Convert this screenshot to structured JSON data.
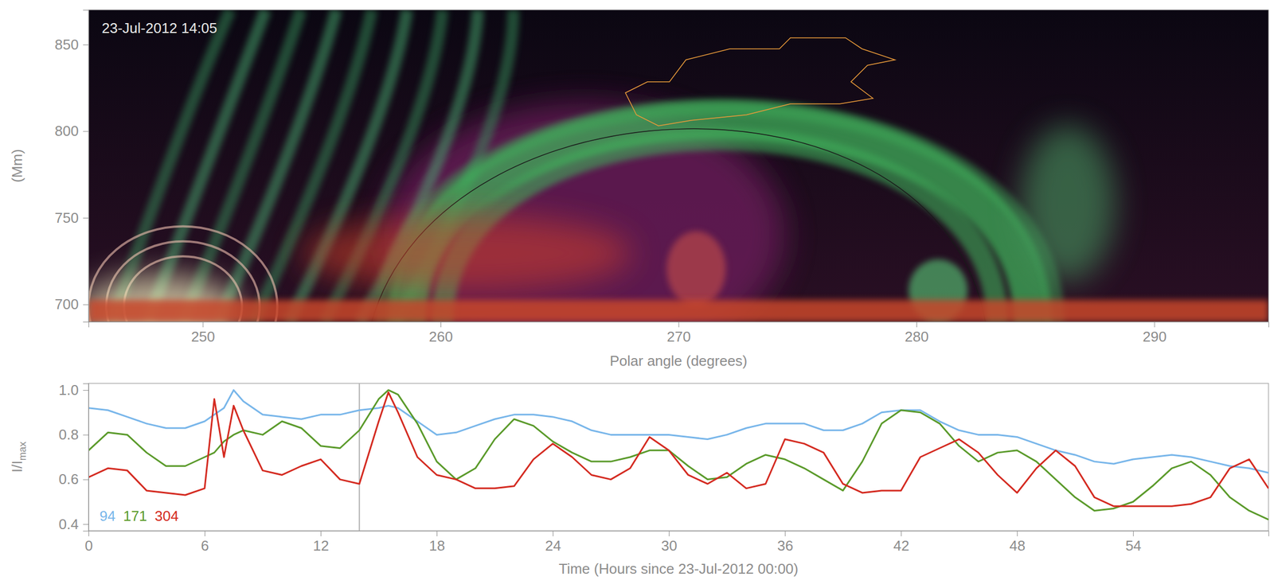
{
  "chart_data": [
    {
      "type": "image",
      "annotation": "23-Jul-2012 14:05",
      "xlabel": "Polar angle (degrees)",
      "ylabel": "(Mm)",
      "xlim": [
        245.2,
        294.8
      ],
      "ylim": [
        690,
        870
      ],
      "xticks": [
        250,
        260,
        270,
        280,
        290
      ],
      "yticks": [
        700,
        750,
        800,
        850
      ]
    },
    {
      "type": "line",
      "xlabel": "Time (Hours since 23-Jul-2012 00:00)",
      "ylabel": "I/Imax",
      "xlim": [
        0,
        61
      ],
      "ylim": [
        0.37,
        1.03
      ],
      "xticks": [
        0,
        6,
        12,
        18,
        24,
        30,
        36,
        42,
        48,
        54
      ],
      "yticks": [
        0.4,
        0.6,
        0.8,
        {
          "value": 1,
          "label": "1.0"
        }
      ],
      "cursor_x": 14,
      "legend": "lower left",
      "x": [
        0,
        1,
        2,
        3,
        4,
        5,
        6,
        6.5,
        7,
        7.5,
        8,
        9,
        10,
        11,
        12,
        13,
        14,
        15,
        15.5,
        16,
        17,
        18,
        19,
        20,
        21,
        22,
        23,
        24,
        25,
        26,
        27,
        28,
        29,
        30,
        31,
        32,
        33,
        34,
        35,
        36,
        37,
        38,
        39,
        40,
        41,
        42,
        43,
        44,
        45,
        46,
        47,
        48,
        49,
        50,
        51,
        52,
        53,
        54,
        55,
        56,
        57,
        58,
        59,
        60,
        61
      ],
      "series": [
        {
          "name": "94",
          "color": "#78b6ea",
          "values": [
            0.92,
            0.91,
            0.88,
            0.85,
            0.83,
            0.83,
            0.86,
            0.89,
            0.92,
            1.0,
            0.95,
            0.89,
            0.88,
            0.87,
            0.89,
            0.89,
            0.91,
            0.92,
            0.93,
            0.92,
            0.86,
            0.8,
            0.81,
            0.84,
            0.87,
            0.89,
            0.89,
            0.88,
            0.86,
            0.82,
            0.8,
            0.8,
            0.8,
            0.8,
            0.79,
            0.78,
            0.8,
            0.83,
            0.85,
            0.85,
            0.85,
            0.82,
            0.82,
            0.85,
            0.9,
            0.91,
            0.91,
            0.86,
            0.82,
            0.8,
            0.8,
            0.79,
            0.76,
            0.73,
            0.71,
            0.68,
            0.67,
            0.69,
            0.7,
            0.71,
            0.7,
            0.68,
            0.66,
            0.65,
            0.63
          ]
        },
        {
          "name": "171",
          "color": "#5a9a2a",
          "values": [
            0.73,
            0.81,
            0.8,
            0.72,
            0.66,
            0.66,
            0.7,
            0.72,
            0.77,
            0.8,
            0.82,
            0.8,
            0.86,
            0.83,
            0.75,
            0.74,
            0.82,
            0.96,
            1.0,
            0.98,
            0.85,
            0.68,
            0.6,
            0.65,
            0.78,
            0.87,
            0.84,
            0.77,
            0.72,
            0.68,
            0.68,
            0.7,
            0.73,
            0.73,
            0.66,
            0.6,
            0.61,
            0.67,
            0.71,
            0.69,
            0.65,
            0.6,
            0.55,
            0.68,
            0.85,
            0.91,
            0.9,
            0.85,
            0.75,
            0.68,
            0.72,
            0.73,
            0.68,
            0.6,
            0.52,
            0.46,
            0.47,
            0.5,
            0.57,
            0.65,
            0.68,
            0.62,
            0.52,
            0.46,
            0.42
          ]
        },
        {
          "name": "304",
          "color": "#d42a20",
          "values": [
            0.61,
            0.65,
            0.64,
            0.55,
            0.54,
            0.53,
            0.56,
            0.96,
            0.7,
            0.93,
            0.82,
            0.64,
            0.62,
            0.66,
            0.69,
            0.6,
            0.58,
            0.86,
            0.99,
            0.9,
            0.7,
            0.62,
            0.6,
            0.56,
            0.56,
            0.57,
            0.69,
            0.76,
            0.7,
            0.62,
            0.6,
            0.65,
            0.79,
            0.73,
            0.62,
            0.58,
            0.63,
            0.56,
            0.58,
            0.78,
            0.76,
            0.72,
            0.58,
            0.54,
            0.55,
            0.55,
            0.7,
            0.74,
            0.78,
            0.72,
            0.62,
            0.54,
            0.65,
            0.73,
            0.66,
            0.52,
            0.48,
            0.48,
            0.48,
            0.48,
            0.49,
            0.52,
            0.65,
            0.69,
            0.56
          ]
        }
      ]
    }
  ]
}
